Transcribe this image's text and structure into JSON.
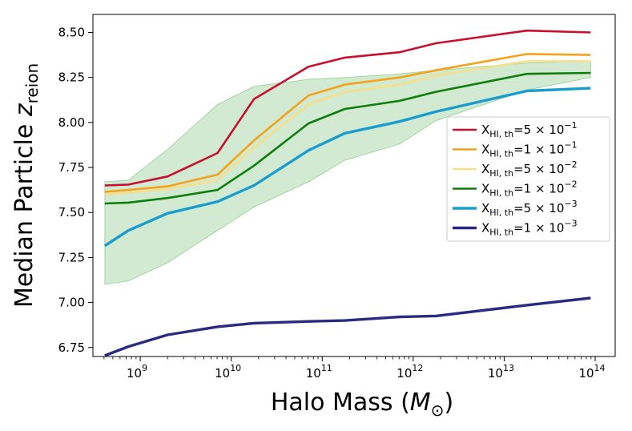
{
  "chart_data": {
    "type": "line",
    "xscale": "log",
    "xlim_log10": [
      8.48,
      14.22
    ],
    "ylim": [
      6.7,
      8.6
    ],
    "xlabel": {
      "base": "Halo Mass (",
      "symbol": "M",
      "subscript": "⊙",
      "close": ")"
    },
    "ylabel": {
      "base": "Median Particle ",
      "symbol": "z",
      "subscript": "reion"
    },
    "x_major_ticks": [
      {
        "exp": 9,
        "label_base": "10",
        "label_exp": "9"
      },
      {
        "exp": 10,
        "label_base": "10",
        "label_exp": "10"
      },
      {
        "exp": 11,
        "label_base": "10",
        "label_exp": "11"
      },
      {
        "exp": 12,
        "label_base": "10",
        "label_exp": "12"
      },
      {
        "exp": 13,
        "label_base": "10",
        "label_exp": "13"
      },
      {
        "exp": 14,
        "label_base": "10",
        "label_exp": "14"
      }
    ],
    "y_ticks": [
      {
        "value": 6.75,
        "label": "6.75"
      },
      {
        "value": 7.0,
        "label": "7.00"
      },
      {
        "value": 7.25,
        "label": "7.25"
      },
      {
        "value": 7.5,
        "label": "7.50"
      },
      {
        "value": 7.75,
        "label": "7.75"
      },
      {
        "value": 8.0,
        "label": "8.00"
      },
      {
        "value": 8.25,
        "label": "8.25"
      },
      {
        "value": 8.5,
        "label": "8.50"
      }
    ],
    "x_log10": [
      8.61,
      8.87,
      9.3,
      9.85,
      10.25,
      10.85,
      11.25,
      11.85,
      12.25,
      13.25,
      13.95
    ],
    "band": {
      "color": "#2ca02c",
      "opacity": 0.22,
      "upper": [
        7.67,
        7.68,
        7.85,
        8.1,
        8.2,
        8.24,
        8.25,
        8.27,
        8.29,
        8.33,
        8.34
      ],
      "lower": [
        7.1,
        7.12,
        7.22,
        7.4,
        7.53,
        7.67,
        7.79,
        7.88,
        8.01,
        8.18,
        8.25
      ]
    },
    "series": [
      {
        "name_sym": "X",
        "name_sub": "HI, th",
        "mantissa": "5",
        "exp": "−1",
        "color": "#c8102e",
        "width": 2.6,
        "values": [
          7.65,
          7.655,
          7.7,
          7.83,
          8.13,
          8.31,
          8.36,
          8.39,
          8.44,
          8.51,
          8.5
        ]
      },
      {
        "name_sym": "X",
        "name_sub": "HI, th",
        "mantissa": "1",
        "exp": "−1",
        "color": "#f5a21b",
        "width": 2.6,
        "values": [
          7.615,
          7.625,
          7.645,
          7.71,
          7.9,
          8.15,
          8.21,
          8.25,
          8.29,
          8.38,
          8.375
        ]
      },
      {
        "name_sym": "X",
        "name_sub": "HI, th",
        "mantissa": "5",
        "exp": "−2",
        "color": "#f6e08c",
        "width": 2.6,
        "values": [
          7.6,
          7.61,
          7.63,
          7.68,
          7.86,
          8.1,
          8.17,
          8.21,
          8.26,
          8.34,
          8.34
        ]
      },
      {
        "name_sym": "X",
        "name_sub": "HI, th",
        "mantissa": "1",
        "exp": "−2",
        "color": "#0e7f0e",
        "width": 2.6,
        "values": [
          7.55,
          7.555,
          7.58,
          7.625,
          7.76,
          7.995,
          8.075,
          8.12,
          8.17,
          8.27,
          8.275
        ]
      },
      {
        "name_sym": "X",
        "name_sub": "HI, th",
        "mantissa": "5",
        "exp": "−3",
        "color": "#1a9dce",
        "width": 3.4,
        "values": [
          7.315,
          7.4,
          7.495,
          7.56,
          7.65,
          7.845,
          7.94,
          8.005,
          8.06,
          8.175,
          8.19
        ]
      },
      {
        "name_sym": "X",
        "name_sub": "HI, th",
        "mantissa": "1",
        "exp": "−3",
        "color": "#2a2a82",
        "width": 3.4,
        "values": [
          6.705,
          6.755,
          6.82,
          6.865,
          6.885,
          6.895,
          6.9,
          6.92,
          6.925,
          6.985,
          7.025
        ]
      }
    ],
    "legend_position": "center-right"
  }
}
